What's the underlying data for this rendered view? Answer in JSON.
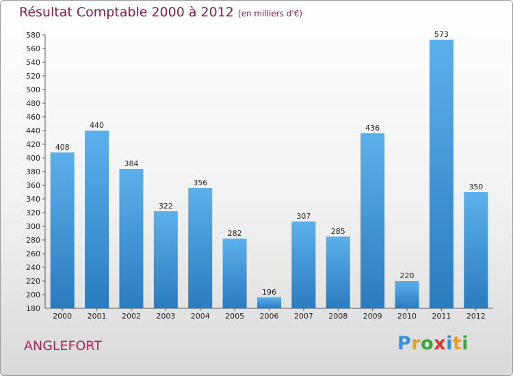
{
  "title": "Résultat Comptable 2000 à 2012",
  "subtitle": "(en milliers d'€)",
  "commune": "ANGLEFORT",
  "logo": {
    "letters": [
      "P",
      "r",
      "o",
      "x",
      "i",
      "t",
      "i"
    ],
    "colors": [
      "#3a8fd6",
      "#e8a020",
      "#3aa63a",
      "#d23a2a",
      "#3a8fd6",
      "#e8a020",
      "#3aa63a"
    ]
  },
  "colors": {
    "bar": "#3c94d8",
    "title": "#8b1a4a",
    "commune": "#b0245c"
  },
  "chart_data": {
    "type": "bar",
    "title": "Résultat Comptable 2000 à 2012",
    "xlabel": "",
    "ylabel": "",
    "categories": [
      "2000",
      "2001",
      "2002",
      "2003",
      "2004",
      "2005",
      "2006",
      "2007",
      "2008",
      "2009",
      "2010",
      "2011",
      "2012"
    ],
    "values": [
      408,
      440,
      384,
      322,
      356,
      282,
      196,
      307,
      285,
      436,
      220,
      573,
      350
    ],
    "ylim": [
      180,
      580
    ],
    "ytick_step": 20,
    "grid": false
  }
}
